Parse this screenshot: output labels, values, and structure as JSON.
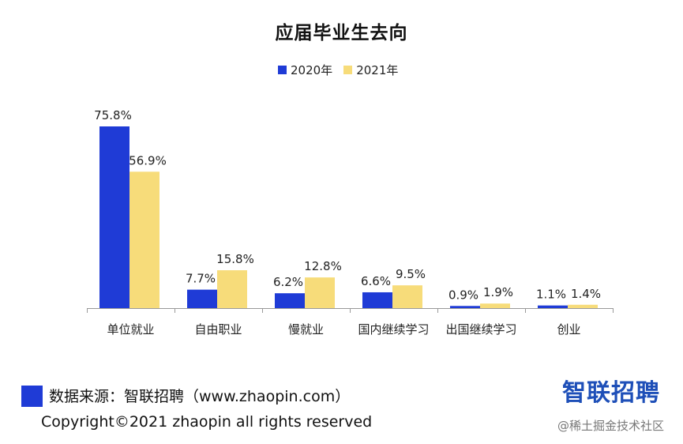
{
  "page": {
    "title": "应届毕业生去向",
    "source": "数据来源：智联招聘（www.zhaopin.com）",
    "copyright": "Copyright©2021 zhaopin all rights reserved",
    "logo_text": "智联招聘",
    "watermark": "@稀土掘金技术社区"
  },
  "colors": {
    "series_2020": "#1f3bd6",
    "series_2021": "#f7dc7a",
    "axis": "#999999"
  },
  "chart_data": {
    "type": "bar",
    "title": "应届毕业生去向",
    "xlabel": "",
    "ylabel": "",
    "ylim": [
      0,
      80
    ],
    "grid": false,
    "legend_position": "top-center",
    "categories": [
      "单位就业",
      "自由职业",
      "慢就业",
      "国内继续学习",
      "出国继续学习",
      "创业"
    ],
    "series": [
      {
        "name": "2020年",
        "values": [
          75.8,
          7.7,
          6.2,
          6.6,
          0.9,
          1.1
        ],
        "labels": [
          "75.8%",
          "7.7%",
          "6.2%",
          "6.6%",
          "0.9%",
          "1.1%"
        ]
      },
      {
        "name": "2021年",
        "values": [
          56.9,
          15.8,
          12.8,
          9.5,
          1.9,
          1.4
        ],
        "labels": [
          "56.9%",
          "15.8%",
          "12.8%",
          "9.5%",
          "1.9%",
          "1.4%"
        ]
      }
    ]
  }
}
